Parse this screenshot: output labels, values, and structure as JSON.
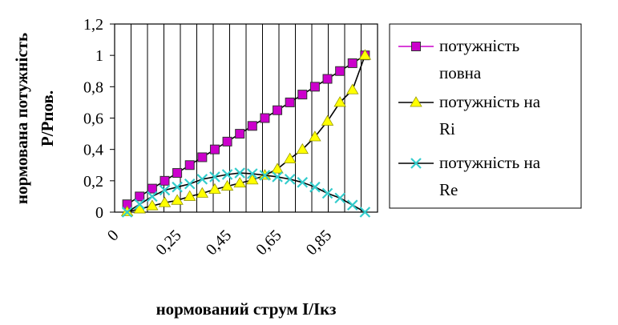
{
  "chart_data": {
    "type": "line",
    "title": "",
    "xlabel": "нормований струм I/Iкз",
    "ylabel_lines": [
      "нормована потужність",
      "Р/Рпов."
    ],
    "x_tick_labels": [
      "0",
      "0,25",
      "0,45",
      "0,65",
      "0,85"
    ],
    "x_tick_values": [
      0,
      0.25,
      0.45,
      0.65,
      0.85
    ],
    "y_tick_labels": [
      "0",
      "0,2",
      "0,4",
      "0,6",
      "0,8",
      "1",
      "1,2"
    ],
    "y_tick_values": [
      0,
      0.2,
      0.4,
      0.6,
      0.8,
      1.0,
      1.2
    ],
    "xlim": [
      0,
      1.05
    ],
    "ylim": [
      0,
      1.2
    ],
    "grid": "vertical",
    "legend_position": "right",
    "x": [
      0.05,
      0.1,
      0.15,
      0.2,
      0.25,
      0.3,
      0.35,
      0.4,
      0.45,
      0.5,
      0.55,
      0.6,
      0.65,
      0.7,
      0.75,
      0.8,
      0.85,
      0.9,
      0.95,
      1.0
    ],
    "series": [
      {
        "name": "потужність повна",
        "legend_lines": [
          "потужність",
          "повна"
        ],
        "marker": "square",
        "color": "#cc00cc",
        "line_color": "#000000",
        "values": [
          0.05,
          0.1,
          0.15,
          0.2,
          0.25,
          0.3,
          0.35,
          0.4,
          0.45,
          0.5,
          0.55,
          0.6,
          0.65,
          0.7,
          0.75,
          0.8,
          0.85,
          0.9,
          0.95,
          1.0
        ]
      },
      {
        "name": "потужність на Ri",
        "legend_lines": [
          "потужність на",
          "Ri"
        ],
        "marker": "triangle",
        "color": "#ffff00",
        "line_color": "#000000",
        "values": [
          0.0025,
          0.02,
          0.04,
          0.06,
          0.075,
          0.1,
          0.12,
          0.145,
          0.165,
          0.185,
          0.205,
          0.235,
          0.275,
          0.34,
          0.4,
          0.48,
          0.58,
          0.7,
          0.78,
          1.0
        ]
      },
      {
        "name": "потужність на Re",
        "legend_lines": [
          "потужність на",
          "Re"
        ],
        "marker": "x",
        "color": "#33cccc",
        "line_color": "#000000",
        "values": [
          0.0,
          0.05,
          0.1,
          0.14,
          0.16,
          0.18,
          0.21,
          0.225,
          0.24,
          0.25,
          0.245,
          0.235,
          0.225,
          0.21,
          0.19,
          0.16,
          0.12,
          0.09,
          0.045,
          0.0
        ]
      }
    ]
  }
}
